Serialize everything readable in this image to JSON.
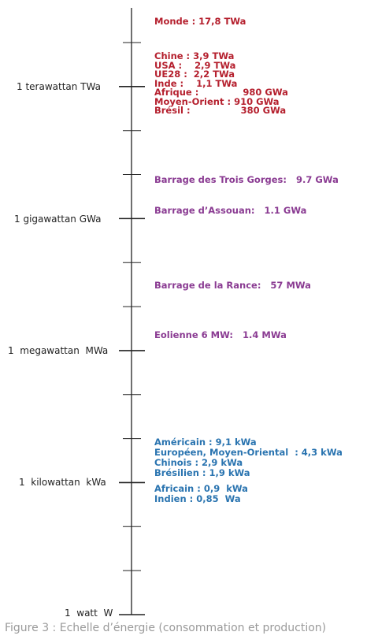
{
  "scale": {
    "major_labels": [
      "1 terawattan TWa",
      "1 gigawattan GWa",
      "1  megawattan  MWa",
      "1  kilowattan  kWa",
      "1  watt  W"
    ]
  },
  "world": {
    "monde": "Monde : 17,8 TWa",
    "regions": [
      "Chine : 3,9 TWa",
      "USA :    2,9 TWa",
      "UE28 :  2,2 TWa",
      "Inde :    1,1 TWa",
      "Afrique :              980 GWa",
      "Moyen-Orient : 910 GWa",
      "Brésil :                380 GWa"
    ]
  },
  "production": {
    "trois_gorges": "Barrage des Trois Gorges:   9.7 GWa",
    "assouan": "Barrage d’Assouan:   1.1 GWa",
    "rance": "Barrage de la Rance:   57 MWa",
    "eolienne": "Eolienne 6 MW:   1.4 MWa"
  },
  "per_capita": [
    "Américain : 9,1 kWa",
    "Européen, Moyen-Oriental  : 4,3 kWa",
    "Chinois : 2,9 kWa",
    "Brésilien : 1,9 kWa"
  ],
  "per_capita_low": [
    "Africain : 0,9  kWa",
    "Indien : 0,85  Wa"
  ],
  "caption": "Figure 3 : Echelle d’énergie (consommation et production)",
  "colors": {
    "consumption_world": "#b5202e",
    "production": "#8a3b92",
    "per_capita": "#2a74b0",
    "axis": "#222222",
    "caption": "#9a9a9a"
  }
}
